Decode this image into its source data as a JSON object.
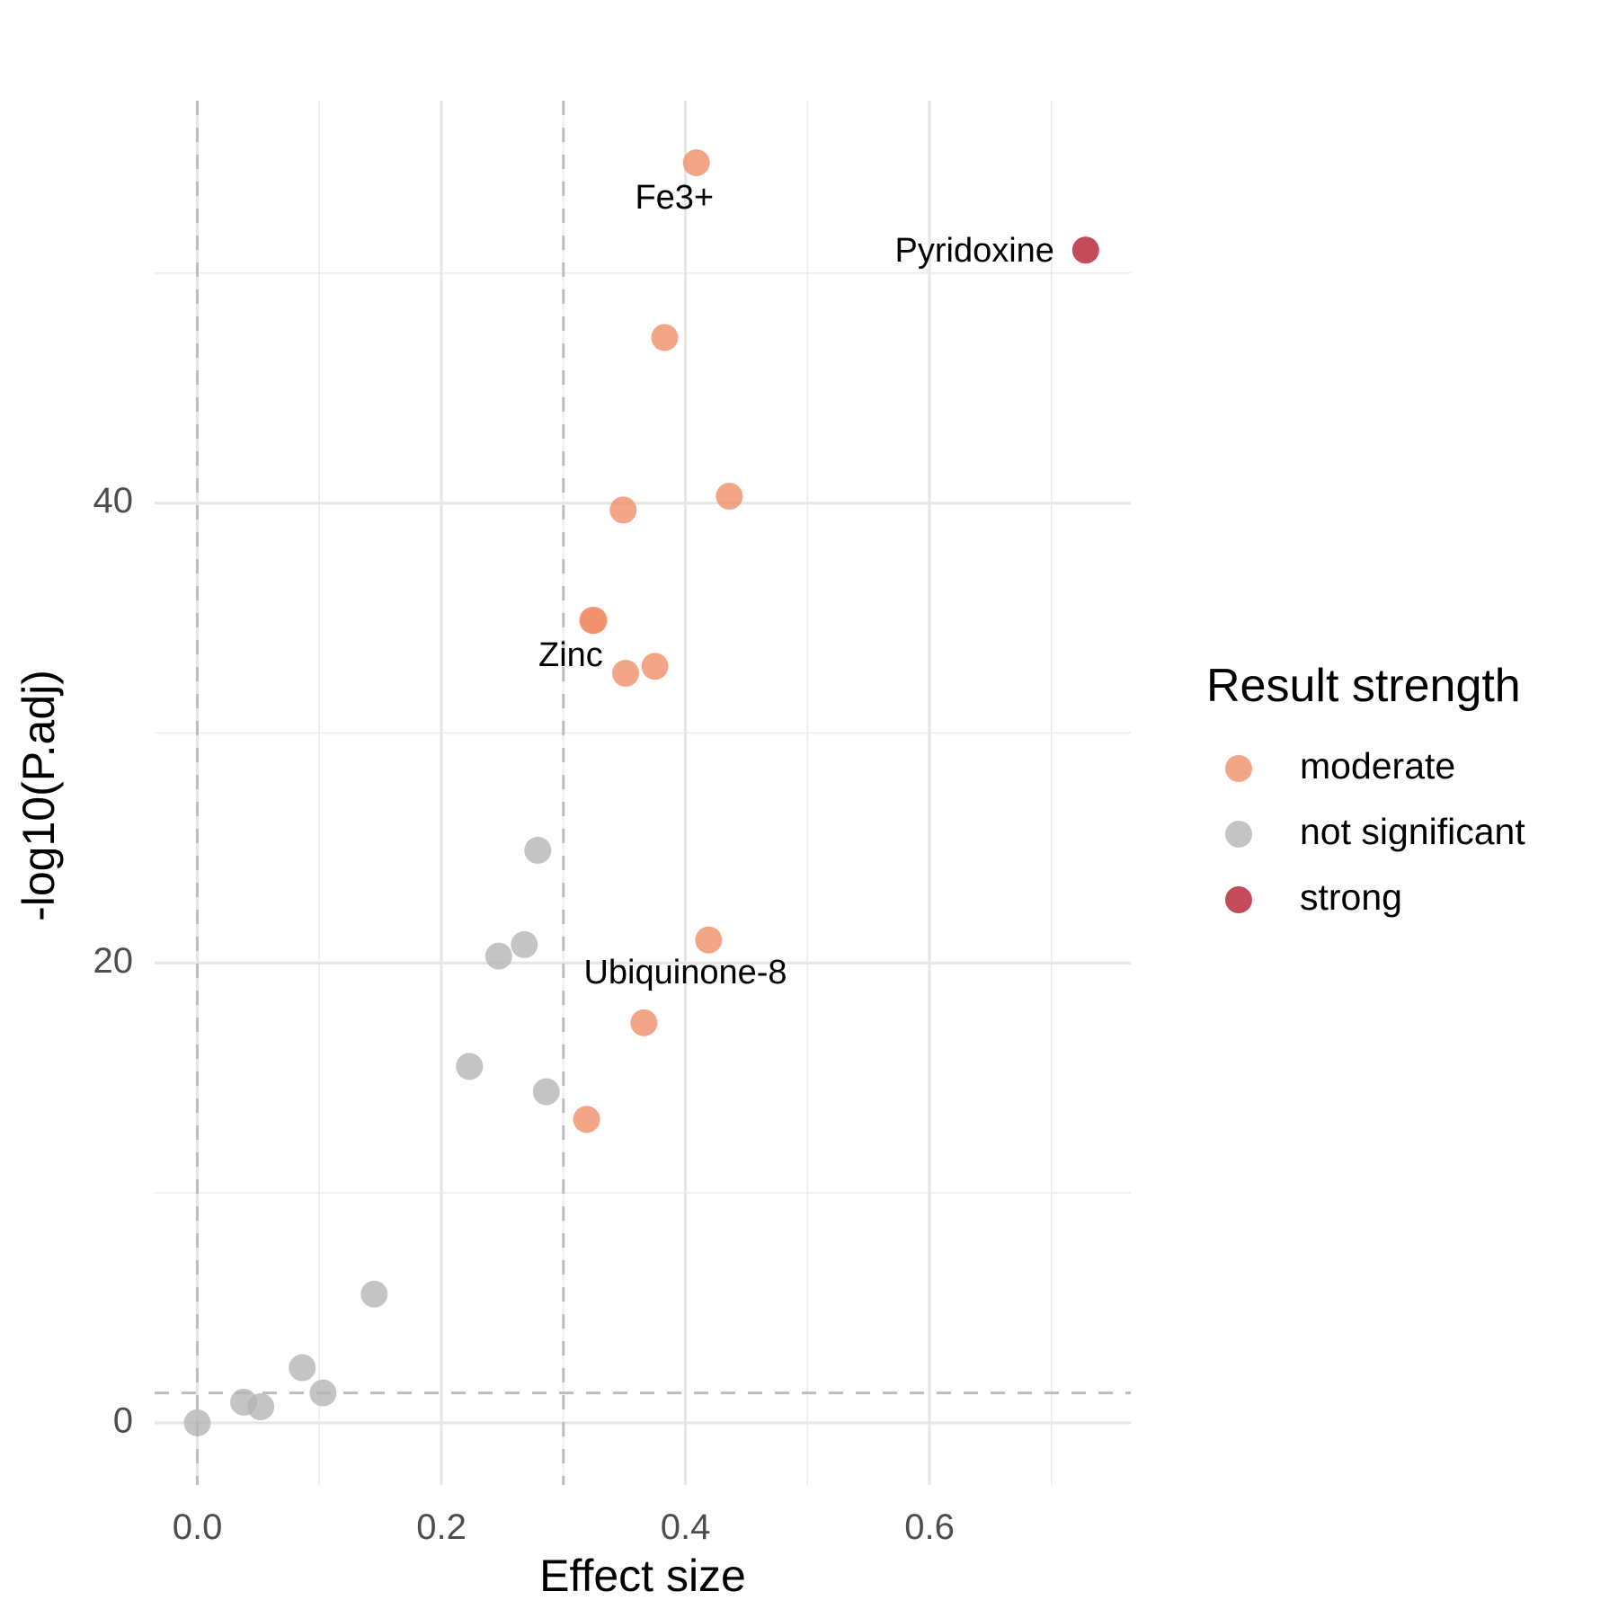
{
  "chart_data": {
    "type": "scatter",
    "xlabel": "Effect size",
    "ylabel": "-log10(P.adj)",
    "xlim": [
      -0.035,
      0.765
    ],
    "ylim": [
      -2.7,
      57.5
    ],
    "x_ticks": [
      {
        "value": 0.0,
        "label": "0.0"
      },
      {
        "value": 0.2,
        "label": "0.2"
      },
      {
        "value": 0.4,
        "label": "0.4"
      },
      {
        "value": 0.6,
        "label": "0.6"
      }
    ],
    "x_minor_grid": [
      0.1,
      0.3,
      0.5,
      0.7
    ],
    "y_ticks": [
      {
        "value": 0,
        "label": "0"
      },
      {
        "value": 20,
        "label": "20"
      },
      {
        "value": 40,
        "label": "40"
      }
    ],
    "y_minor_grid": [
      10,
      30,
      50
    ],
    "grid": true,
    "reference_lines": {
      "vertical": [
        0,
        0.3
      ],
      "horizontal": [
        1.3
      ]
    },
    "legend": {
      "title": "Result strength",
      "position": "right",
      "entries": [
        {
          "label": "moderate",
          "color": "#F08C66"
        },
        {
          "label": "not significant",
          "color": "#B3B3B3"
        },
        {
          "label": "strong",
          "color": "#B2182B"
        }
      ]
    },
    "series": [
      {
        "name": "moderate",
        "color": "#F08C66",
        "points": [
          {
            "x": 0.409,
            "y": 54.8
          },
          {
            "x": 0.383,
            "y": 47.2
          },
          {
            "x": 0.436,
            "y": 40.3
          },
          {
            "x": 0.349,
            "y": 39.7
          },
          {
            "x": 0.325,
            "y": 34.9
          },
          {
            "x": 0.324,
            "y": 34.9
          },
          {
            "x": 0.351,
            "y": 32.6
          },
          {
            "x": 0.375,
            "y": 32.9
          },
          {
            "x": 0.419,
            "y": 21.0
          },
          {
            "x": 0.366,
            "y": 17.4
          },
          {
            "x": 0.319,
            "y": 13.2
          }
        ]
      },
      {
        "name": "not significant",
        "color": "#B3B3B3",
        "points": [
          {
            "x": 0.279,
            "y": 24.9
          },
          {
            "x": 0.268,
            "y": 20.8
          },
          {
            "x": 0.247,
            "y": 20.3
          },
          {
            "x": 0.223,
            "y": 15.5
          },
          {
            "x": 0.286,
            "y": 14.4
          },
          {
            "x": 0.145,
            "y": 5.6
          },
          {
            "x": 0.086,
            "y": 2.4
          },
          {
            "x": 0.103,
            "y": 1.3
          },
          {
            "x": 0.038,
            "y": 0.9
          },
          {
            "x": 0.052,
            "y": 0.7
          },
          {
            "x": 0.0,
            "y": 0.0
          }
        ]
      },
      {
        "name": "strong",
        "color": "#B2182B",
        "points": [
          {
            "x": 0.728,
            "y": 51.0
          }
        ]
      }
    ],
    "annotations": [
      {
        "text": "Fe3+",
        "x": 0.391,
        "y": 53.2
      },
      {
        "text": "Pyridoxine",
        "x": 0.637,
        "y": 50.9
      },
      {
        "text": "Zinc",
        "x": 0.306,
        "y": 33.3
      },
      {
        "text": "Ubiquinone-8",
        "x": 0.4,
        "y": 19.5
      }
    ]
  }
}
